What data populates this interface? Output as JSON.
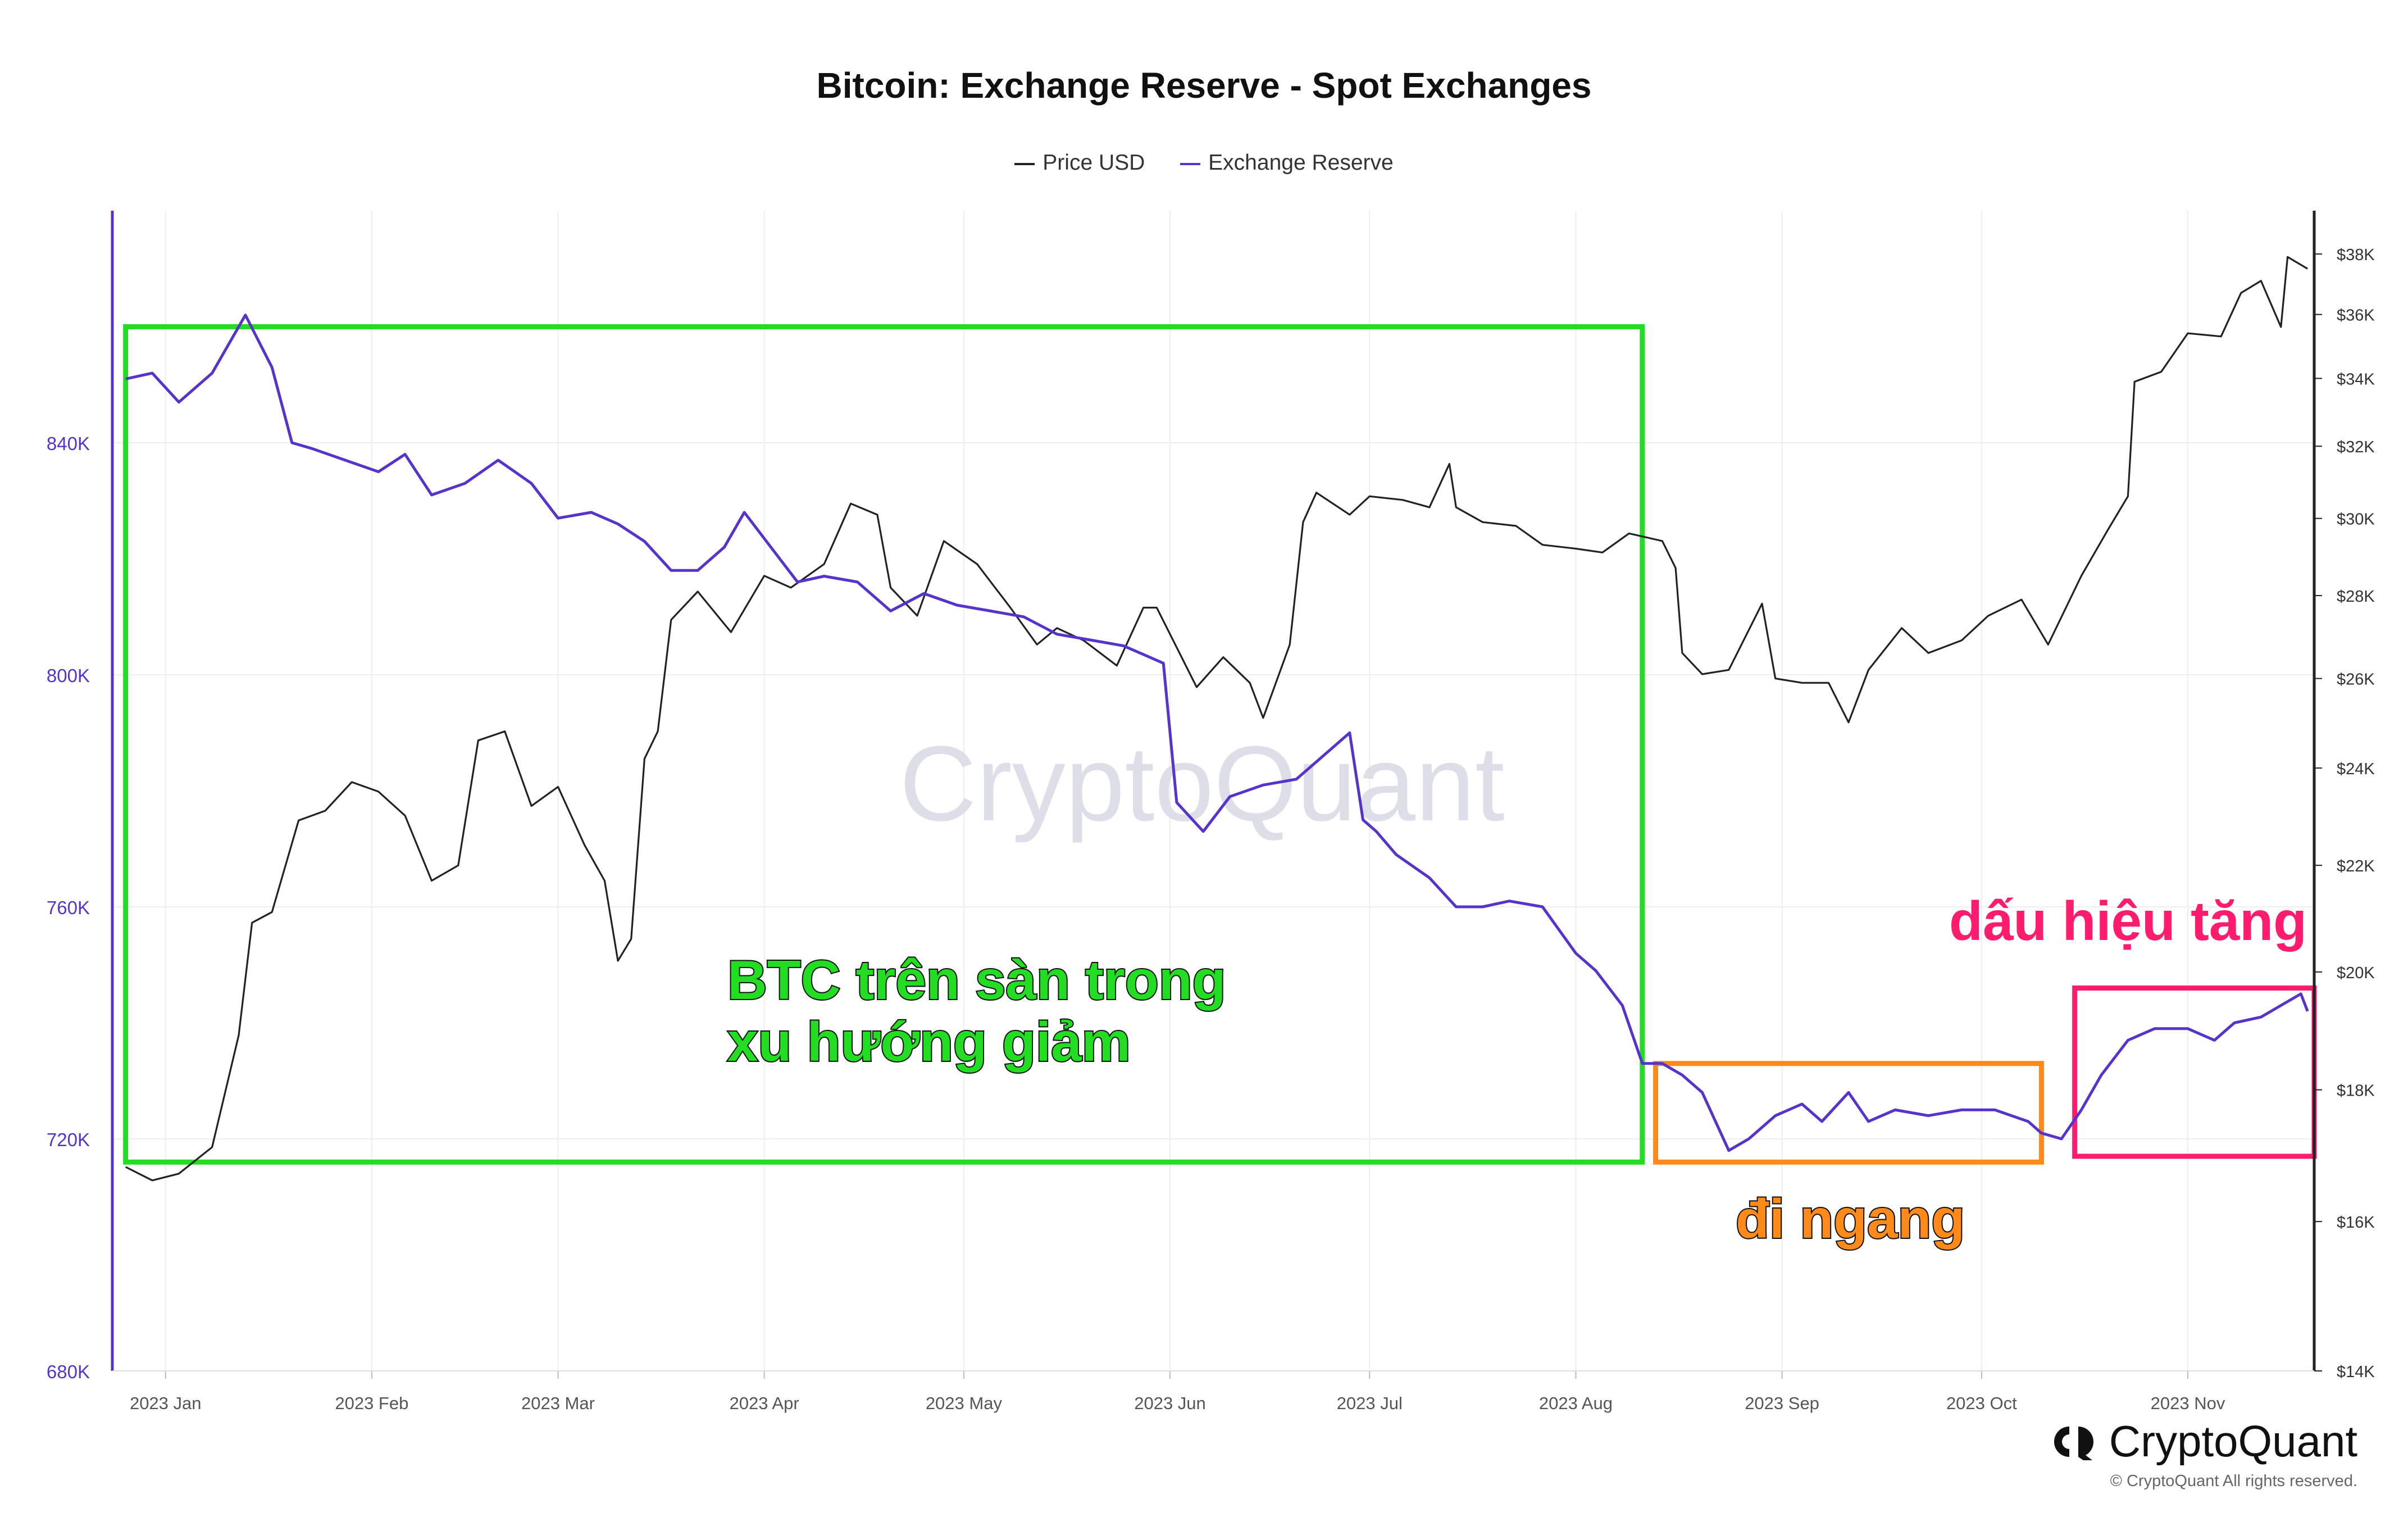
{
  "chart_data": {
    "type": "line",
    "title": "Bitcoin: Exchange Reserve - Spot Exchanges",
    "legend": [
      "Price USD",
      "Exchange Reserve"
    ],
    "legend_placement": "top-center",
    "x_ticks": [
      "2023 Jan",
      "2023 Feb",
      "2023 Mar",
      "2023 Apr",
      "2023 May",
      "2023 Jun",
      "2023 Jul",
      "2023 Aug",
      "2023 Sep",
      "2023 Oct",
      "2023 Nov"
    ],
    "x_range": [
      "2022-12-24",
      "2023-11-20"
    ],
    "y_left": {
      "ticks": [
        "680K",
        "720K",
        "760K",
        "800K",
        "840K"
      ],
      "values": [
        680,
        720,
        760,
        800,
        840
      ],
      "range": [
        680,
        880
      ],
      "unit": "K BTC"
    },
    "y_right": {
      "ticks": [
        "$14K",
        "$16K",
        "$18K",
        "$20K",
        "$22K",
        "$24K",
        "$26K",
        "$28K",
        "$30K",
        "$32K",
        "$34K",
        "$36K",
        "$38K"
      ],
      "values": [
        14,
        16,
        18,
        20,
        22,
        24,
        26,
        28,
        30,
        32,
        34,
        36,
        38
      ],
      "range": [
        14,
        39.5
      ],
      "scale": "log",
      "unit": "K USD"
    },
    "grid": true,
    "series": [
      {
        "name": "Exchange Reserve",
        "axis": "left",
        "color": "#5533cc",
        "x": [
          "2022-12-26",
          "2022-12-30",
          "2023-01-03",
          "2023-01-08",
          "2023-01-13",
          "2023-01-17",
          "2023-01-20",
          "2023-01-23",
          "2023-01-28",
          "2023-02-02",
          "2023-02-06",
          "2023-02-10",
          "2023-02-15",
          "2023-02-20",
          "2023-02-25",
          "2023-03-01",
          "2023-03-06",
          "2023-03-10",
          "2023-03-14",
          "2023-03-18",
          "2023-03-22",
          "2023-03-26",
          "2023-03-29",
          "2023-04-02",
          "2023-04-06",
          "2023-04-10",
          "2023-04-15",
          "2023-04-20",
          "2023-04-25",
          "2023-04-30",
          "2023-05-05",
          "2023-05-10",
          "2023-05-15",
          "2023-05-20",
          "2023-05-25",
          "2023-05-29",
          "2023-05-31",
          "2023-06-02",
          "2023-06-06",
          "2023-06-10",
          "2023-06-15",
          "2023-06-20",
          "2023-06-25",
          "2023-06-28",
          "2023-06-30",
          "2023-07-02",
          "2023-07-05",
          "2023-07-10",
          "2023-07-14",
          "2023-07-18",
          "2023-07-22",
          "2023-07-27",
          "2023-08-01",
          "2023-08-04",
          "2023-08-08",
          "2023-08-11",
          "2023-08-14",
          "2023-08-17",
          "2023-08-20",
          "2023-08-24",
          "2023-08-27",
          "2023-08-31",
          "2023-09-04",
          "2023-09-07",
          "2023-09-11",
          "2023-09-14",
          "2023-09-18",
          "2023-09-23",
          "2023-09-28",
          "2023-10-03",
          "2023-10-08",
          "2023-10-10",
          "2023-10-13",
          "2023-10-16",
          "2023-10-19",
          "2023-10-23",
          "2023-10-27",
          "2023-11-01",
          "2023-11-05",
          "2023-11-08",
          "2023-11-12",
          "2023-11-15",
          "2023-11-18",
          "2023-11-19"
        ],
        "values": [
          851,
          852,
          847,
          852,
          862,
          853,
          840,
          839,
          837,
          835,
          838,
          831,
          833,
          837,
          833,
          827,
          828,
          826,
          823,
          818,
          818,
          822,
          828,
          822,
          816,
          817,
          816,
          811,
          814,
          812,
          811,
          810,
          807,
          806,
          805,
          803,
          802,
          778,
          773,
          779,
          781,
          782,
          787,
          790,
          775,
          773,
          769,
          765,
          760,
          760,
          761,
          760,
          752,
          749,
          743,
          733,
          733,
          731,
          728,
          718,
          720,
          724,
          726,
          723,
          728,
          723,
          725,
          724,
          725,
          725,
          723,
          721,
          720,
          725,
          731,
          737,
          739,
          739,
          737,
          740,
          741,
          743,
          745,
          742
        ]
      },
      {
        "name": "Price USD",
        "axis": "right",
        "color": "#222222",
        "x": [
          "2022-12-26",
          "2022-12-30",
          "2023-01-03",
          "2023-01-08",
          "2023-01-12",
          "2023-01-14",
          "2023-01-17",
          "2023-01-21",
          "2023-01-25",
          "2023-01-29",
          "2023-02-02",
          "2023-02-06",
          "2023-02-10",
          "2023-02-14",
          "2023-02-17",
          "2023-02-21",
          "2023-02-25",
          "2023-03-01",
          "2023-03-05",
          "2023-03-08",
          "2023-03-10",
          "2023-03-12",
          "2023-03-14",
          "2023-03-16",
          "2023-03-18",
          "2023-03-22",
          "2023-03-27",
          "2023-04-01",
          "2023-04-05",
          "2023-04-10",
          "2023-04-14",
          "2023-04-18",
          "2023-04-20",
          "2023-04-24",
          "2023-04-28",
          "2023-05-03",
          "2023-05-08",
          "2023-05-12",
          "2023-05-15",
          "2023-05-19",
          "2023-05-24",
          "2023-05-28",
          "2023-05-30",
          "2023-06-05",
          "2023-06-09",
          "2023-06-13",
          "2023-06-15",
          "2023-06-19",
          "2023-06-21",
          "2023-06-23",
          "2023-06-28",
          "2023-07-01",
          "2023-07-06",
          "2023-07-10",
          "2023-07-13",
          "2023-07-14",
          "2023-07-18",
          "2023-07-23",
          "2023-07-27",
          "2023-08-01",
          "2023-08-05",
          "2023-08-09",
          "2023-08-14",
          "2023-08-16",
          "2023-08-17",
          "2023-08-20",
          "2023-08-24",
          "2023-08-29",
          "2023-08-31",
          "2023-09-04",
          "2023-09-08",
          "2023-09-11",
          "2023-09-14",
          "2023-09-19",
          "2023-09-23",
          "2023-09-28",
          "2023-10-02",
          "2023-10-07",
          "2023-10-11",
          "2023-10-16",
          "2023-10-20",
          "2023-10-23",
          "2023-10-24",
          "2023-10-28",
          "2023-11-01",
          "2023-11-06",
          "2023-11-09",
          "2023-11-12",
          "2023-11-15",
          "2023-11-16",
          "2023-11-19"
        ],
        "values": [
          16.8,
          16.6,
          16.7,
          17.1,
          18.9,
          20.9,
          21.1,
          22.9,
          23.1,
          23.7,
          23.5,
          23.0,
          21.7,
          22.0,
          24.6,
          24.8,
          23.2,
          23.6,
          22.4,
          21.7,
          20.2,
          20.6,
          24.2,
          24.8,
          27.4,
          28.1,
          27.1,
          28.5,
          28.2,
          28.8,
          30.4,
          30.1,
          28.2,
          27.5,
          29.4,
          28.8,
          27.7,
          26.8,
          27.2,
          26.9,
          26.3,
          27.7,
          27.7,
          25.8,
          26.5,
          25.9,
          25.1,
          26.8,
          29.9,
          30.7,
          30.1,
          30.6,
          30.5,
          30.3,
          31.5,
          30.3,
          29.9,
          29.8,
          29.3,
          29.2,
          29.1,
          29.6,
          29.4,
          28.7,
          26.6,
          26.1,
          26.2,
          27.8,
          26.0,
          25.9,
          25.9,
          25.0,
          26.2,
          27.2,
          26.6,
          26.9,
          27.5,
          27.9,
          26.8,
          28.5,
          29.7,
          30.6,
          33.9,
          34.2,
          35.4,
          35.3,
          36.7,
          37.1,
          35.6,
          37.9,
          37.5
        ]
      }
    ],
    "annotations": [
      {
        "text": "BTC trên sàn trong xu hướng giảm",
        "color": "#22dd22",
        "box_from": "2022-12-26",
        "box_to": "2023-08-11",
        "box_y": [
          716,
          860
        ]
      },
      {
        "text": "đi ngang",
        "color": "#ff8a1a",
        "box_from": "2023-08-13",
        "box_to": "2023-10-10",
        "box_y": [
          716,
          733
        ]
      },
      {
        "text": "dấu hiệu tăng",
        "color": "#ff1c6e",
        "box_from": "2023-10-15",
        "box_to": "2023-11-20",
        "box_y": [
          717,
          746
        ]
      }
    ]
  },
  "watermark": "CryptoQuant",
  "brand": {
    "name": "CryptoQuant",
    "copyright": "© CryptoQuant All rights reserved."
  },
  "colors": {
    "reserve": "#5533cc",
    "price": "#222222",
    "grid": "#eeeeee",
    "axis_left": "#5533cc",
    "axis_right": "#222222"
  }
}
